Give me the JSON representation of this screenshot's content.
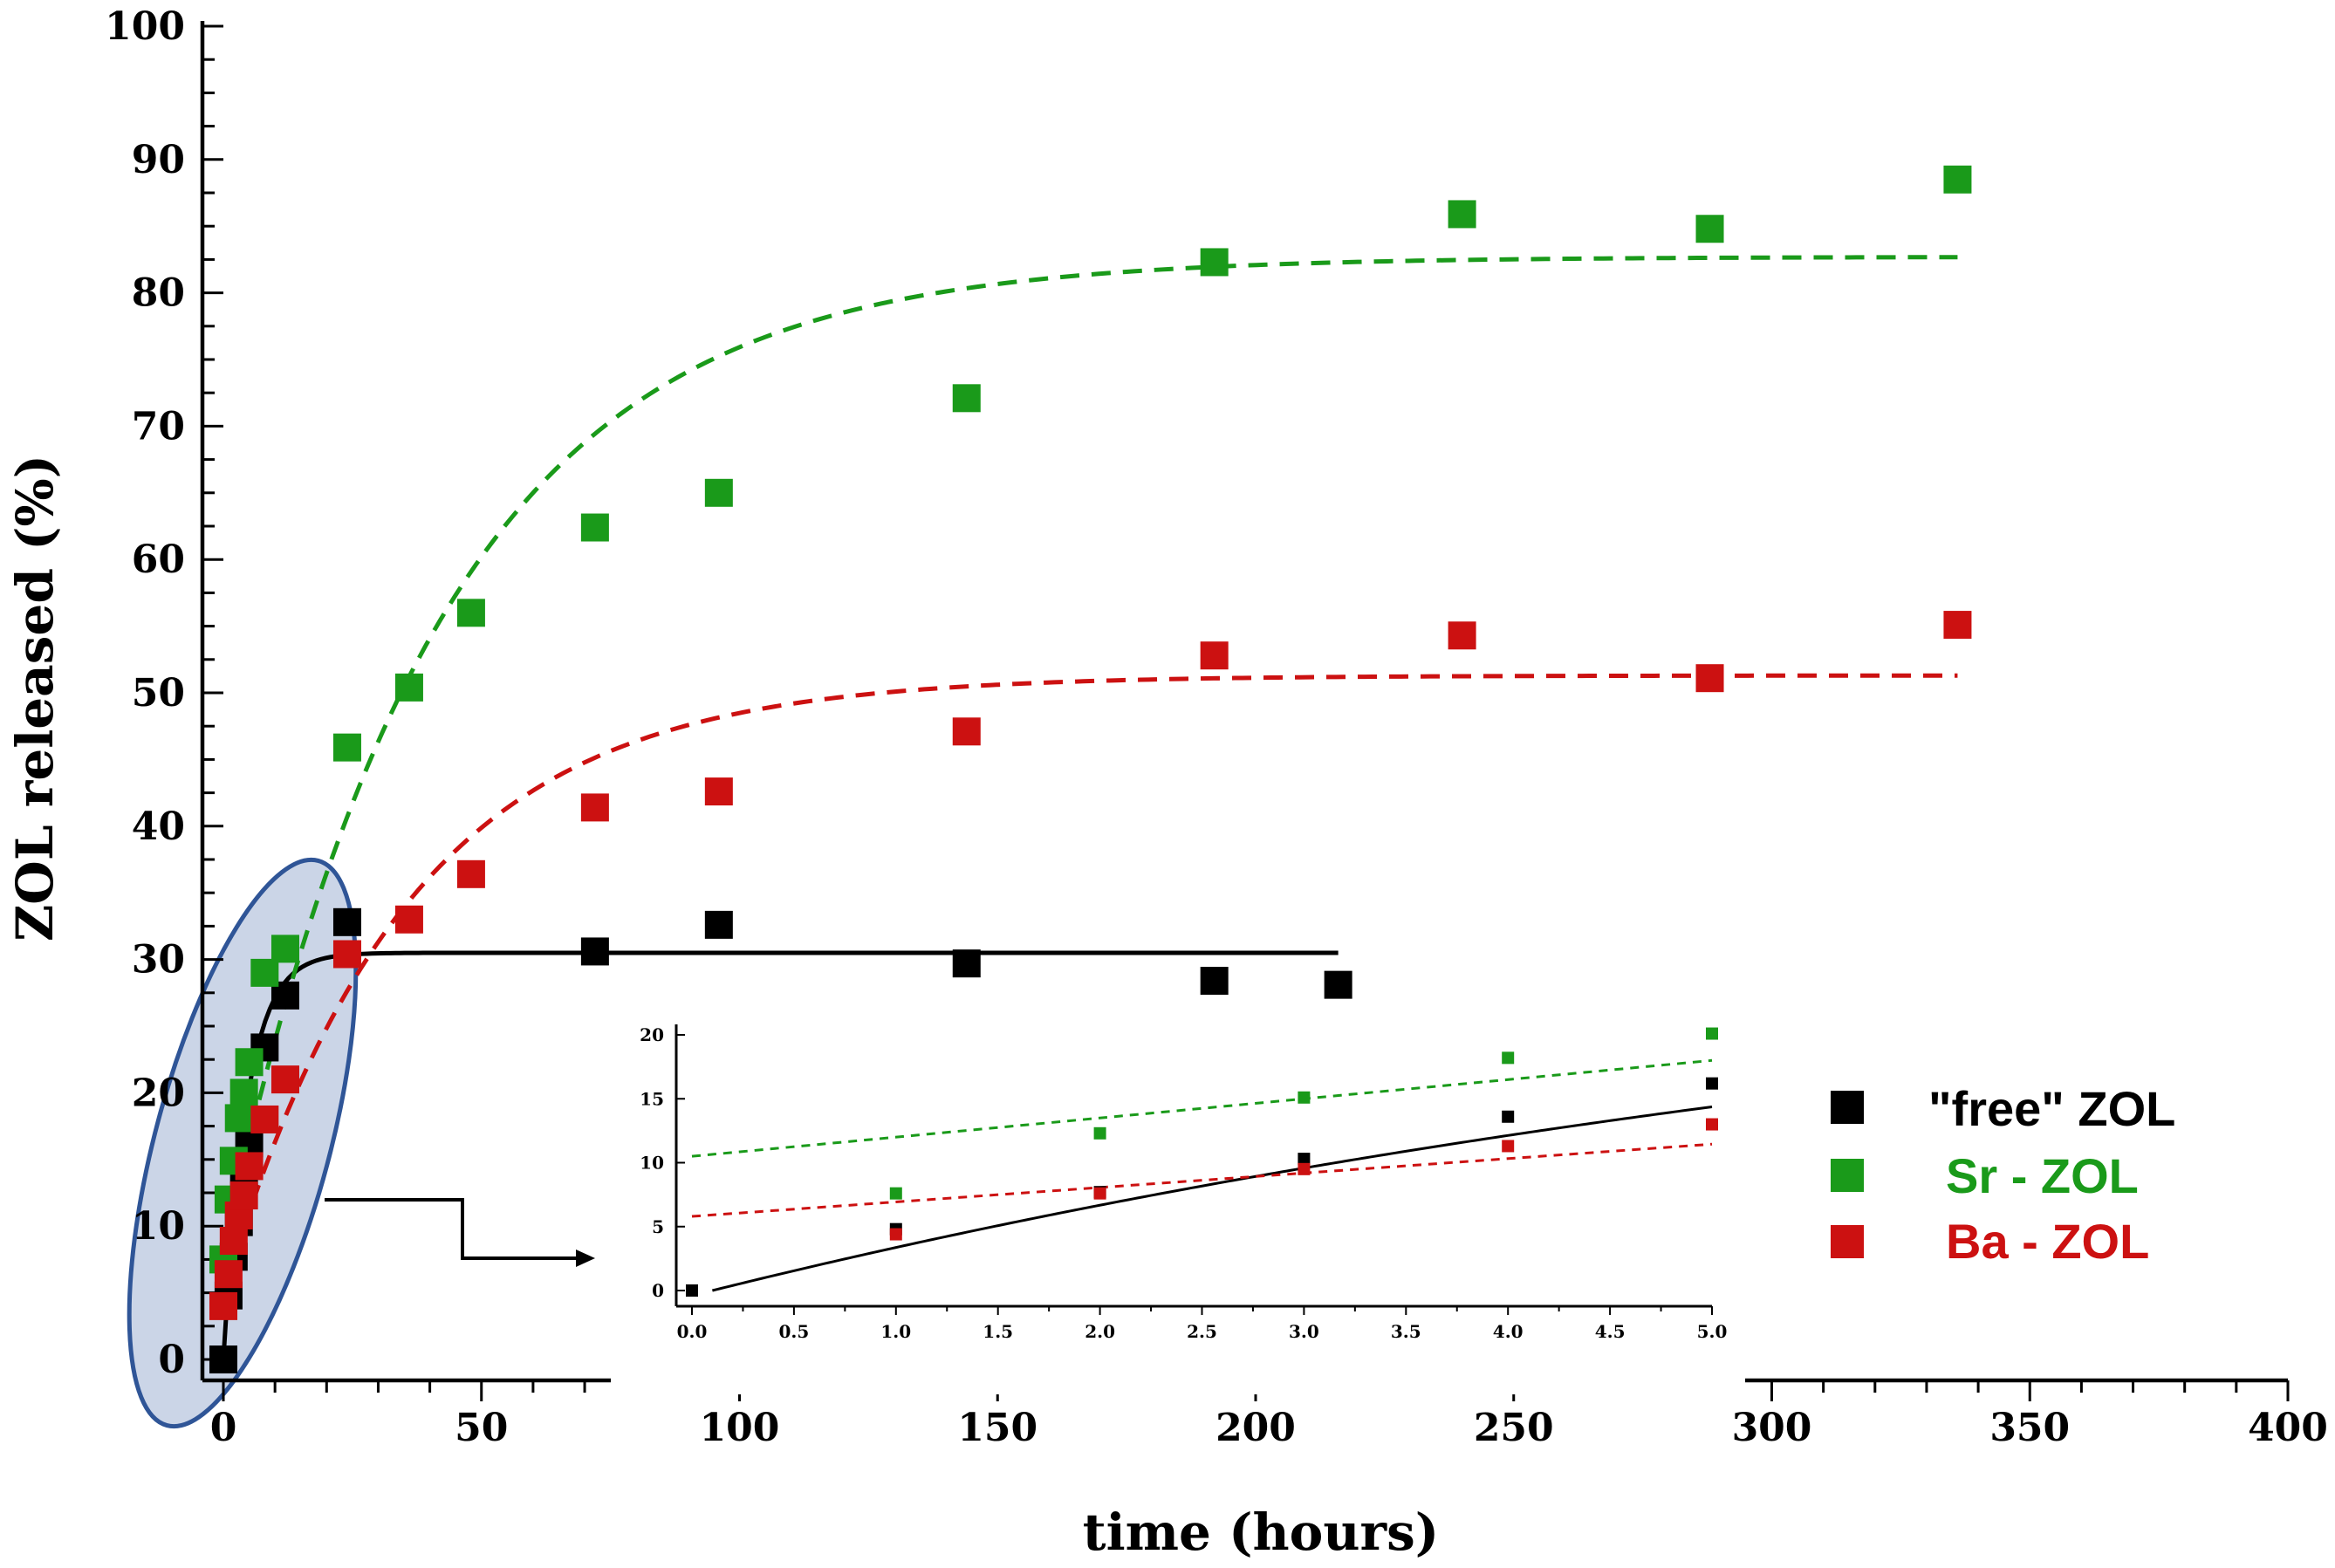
{
  "chart_data": [
    {
      "type": "scatter",
      "xlabel": "time (hours)",
      "ylabel": "ZOL released (%)",
      "xlim": [
        0,
        400
      ],
      "ylim": [
        0,
        100
      ],
      "xticks": [
        0,
        50,
        100,
        150,
        200,
        250,
        300,
        350,
        400
      ],
      "yticks": [
        0,
        10,
        20,
        30,
        40,
        50,
        60,
        70,
        80,
        90,
        100
      ],
      "series": [
        {
          "name": "\"free\" ZOL",
          "color": "#000000",
          "points": [
            [
              0,
              0
            ],
            [
              1,
              4.8
            ],
            [
              2,
              7.7
            ],
            [
              3,
              10.3
            ],
            [
              4,
              13.6
            ],
            [
              5,
              16.2
            ],
            [
              8,
              23.4
            ],
            [
              12,
              27.3
            ],
            [
              24,
              32.8
            ],
            [
              72,
              30.6
            ],
            [
              96,
              32.6
            ],
            [
              144,
              29.7
            ],
            [
              192,
              28.4
            ],
            [
              216,
              28.1
            ]
          ],
          "fit": {
            "style": "solid",
            "plateau": 30.5,
            "k": 0.22,
            "x_end": 216
          }
        },
        {
          "name": "Sr - ZOL",
          "color": "#1a9a1a",
          "points": [
            [
              0,
              7.5
            ],
            [
              1,
              12.0
            ],
            [
              2,
              14.9
            ],
            [
              3,
              18.1
            ],
            [
              4,
              20.0
            ],
            [
              5,
              22.3
            ],
            [
              8,
              29.0
            ],
            [
              12,
              30.8
            ],
            [
              24,
              45.9
            ],
            [
              36,
              50.4
            ],
            [
              48,
              56.0
            ],
            [
              72,
              62.4
            ],
            [
              96,
              65.0
            ],
            [
              144,
              72.1
            ],
            [
              192,
              82.3
            ],
            [
              240,
              85.9
            ],
            [
              288,
              84.8
            ],
            [
              336,
              88.5
            ]
          ],
          "fit": {
            "style": "dashed",
            "y0": 8,
            "plateau": 82.7,
            "k": 0.024,
            "x_end": 336
          }
        },
        {
          "name": "Ba - ZOL",
          "color": "#cc1111",
          "points": [
            [
              0,
              4.0
            ],
            [
              1,
              6.4
            ],
            [
              2,
              8.9
            ],
            [
              3,
              10.8
            ],
            [
              4,
              12.3
            ],
            [
              5,
              14.5
            ],
            [
              8,
              18.0
            ],
            [
              12,
              21.0
            ],
            [
              24,
              30.4
            ],
            [
              36,
              33.0
            ],
            [
              48,
              36.4
            ],
            [
              72,
              41.4
            ],
            [
              96,
              42.6
            ],
            [
              144,
              47.1
            ],
            [
              192,
              52.8
            ],
            [
              240,
              54.3
            ],
            [
              288,
              51.1
            ],
            [
              336,
              55.1
            ]
          ],
          "fit": {
            "style": "dashed",
            "y0": 5,
            "plateau": 51.3,
            "k": 0.028,
            "x_end": 336
          }
        }
      ],
      "legend": {
        "placement": "right"
      }
    },
    {
      "type": "scatter",
      "role": "inset",
      "xlim": [
        0,
        5
      ],
      "ylim": [
        0,
        20
      ],
      "xticks": [
        0.0,
        0.5,
        1.0,
        1.5,
        2.0,
        2.5,
        3.0,
        3.5,
        4.0,
        4.5,
        5.0
      ],
      "yticks": [
        0,
        5,
        10,
        15,
        20
      ],
      "series": [
        {
          "name": "\"free\" ZOL",
          "color": "#000000",
          "points": [
            [
              0,
              0
            ],
            [
              1,
              4.8
            ],
            [
              2,
              7.7
            ],
            [
              3,
              10.3
            ],
            [
              4,
              13.6
            ],
            [
              5,
              16.2
            ]
          ],
          "fit": {
            "style": "solid",
            "x_start": 0.1,
            "y_start": 0,
            "plateau": 30.5,
            "k": 0.13
          }
        },
        {
          "name": "Sr - ZOL",
          "color": "#1a9a1a",
          "points": [
            [
              1,
              7.6
            ],
            [
              2,
              12.3
            ],
            [
              3,
              15.1
            ],
            [
              4,
              18.2
            ],
            [
              5,
              20.1
            ]
          ],
          "fit": {
            "style": "dashed",
            "line": [
              10.5,
              1.5
            ]
          }
        },
        {
          "name": "Ba - ZOL",
          "color": "#cc1111",
          "points": [
            [
              1,
              4.4
            ],
            [
              2,
              7.6
            ],
            [
              3,
              9.5
            ],
            [
              4,
              11.3
            ],
            [
              5,
              13.0
            ]
          ],
          "fit": {
            "style": "dashed",
            "line": [
              5.8,
              1.13
            ]
          }
        }
      ]
    }
  ]
}
